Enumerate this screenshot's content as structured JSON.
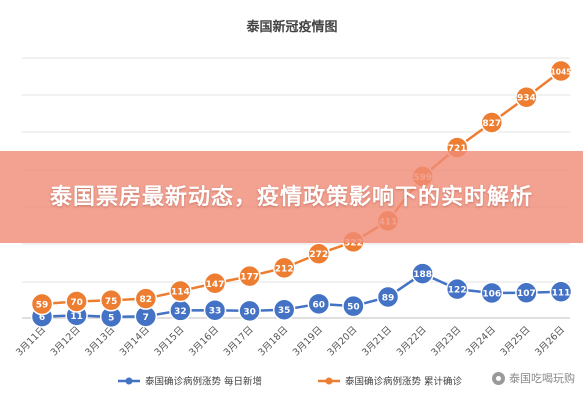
{
  "chart_data": {
    "type": "line",
    "title": "泰国新冠疫情图",
    "categories": [
      "3月11日",
      "3月12日",
      "3月13日",
      "3月14日",
      "3月15日",
      "3月16日",
      "3月17日",
      "3月18日",
      "3月19日",
      "3月20日",
      "3月21日",
      "3月22日",
      "3月23日",
      "3月24日",
      "3月25日",
      "3月26日"
    ],
    "series": [
      {
        "name": "泰国确诊病例涨势 每日新增",
        "color": "#4472c4",
        "values": [
          6,
          11,
          5,
          7,
          32,
          33,
          30,
          35,
          60,
          50,
          89,
          188,
          122,
          106,
          107,
          111
        ]
      },
      {
        "name": "泰国确诊病例涨势 累计确诊",
        "color": "#ed7d31",
        "values": [
          59,
          70,
          75,
          82,
          114,
          147,
          177,
          212,
          272,
          322,
          411,
          599,
          721,
          827,
          934,
          1045
        ]
      }
    ],
    "ylim": [
      0,
      1100
    ],
    "grid": true,
    "legend": "bottom"
  },
  "overlay": {
    "headline": "泰国票房最新动态，疫情政策影响下的实时解析"
  },
  "watermark": {
    "text": "泰国吃喝玩购",
    "icon": "wechat-icon"
  }
}
